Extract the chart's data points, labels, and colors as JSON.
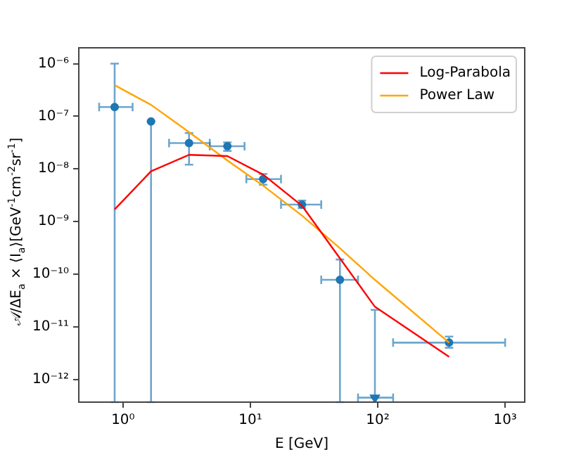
{
  "chart_data": {
    "type": "scatter",
    "xlabel": "E [GeV]",
    "ylabel": "𝒜/ΔE$_{a}$ × ⟨I$_{a}$⟩[GeV$^{-1}$cm$^{-2}$sr$^{-1}$]",
    "log": "xy",
    "grid": false,
    "legend": "top right",
    "xlim": [
      0.45,
      1425
    ],
    "ylim": [
      3.7e-13,
      2e-06
    ],
    "xticks": [
      {
        "value": 1,
        "label": "10⁰"
      },
      {
        "value": 10,
        "label": "10¹"
      },
      {
        "value": 100,
        "label": "10²"
      },
      {
        "value": 1000,
        "label": "10³"
      }
    ],
    "yticks": [
      {
        "value": 1e-12,
        "label": "10⁻¹²"
      },
      {
        "value": 1e-11,
        "label": "10⁻¹¹"
      },
      {
        "value": 1e-10,
        "label": "10⁻¹⁰"
      },
      {
        "value": 1e-09,
        "label": "10⁻⁹"
      },
      {
        "value": 1e-08,
        "label": "10⁻⁸"
      },
      {
        "value": 1e-07,
        "label": "10⁻⁷"
      },
      {
        "value": 1e-06,
        "label": "10⁻⁶"
      }
    ],
    "series": [
      {
        "type": "line",
        "name": "Log-Parabola",
        "color": "#ff0000",
        "marker": "none",
        "x": [
          0.86,
          1.66,
          3.3,
          6.6,
          12.6,
          25.4,
          50.5,
          95,
          363
        ],
        "values": [
          1.7e-09,
          9e-09,
          1.85e-08,
          1.75e-08,
          7.8e-09,
          2e-09,
          2e-10,
          2.4e-11,
          2.7e-12
        ]
      },
      {
        "type": "line",
        "name": "Power Law",
        "color": "#ffa500",
        "marker": "none",
        "x": [
          0.86,
          1.66,
          3.3,
          6.6,
          12.6,
          25.4,
          50.5,
          95,
          363
        ],
        "values": [
          3.9e-07,
          1.65e-07,
          5e-08,
          1.45e-08,
          4.8e-09,
          1.3e-09,
          3.1e-10,
          7.8e-11,
          5e-12
        ]
      },
      {
        "type": "scatter",
        "color": "#1f77b4",
        "marker": "circle",
        "x": [
          0.86,
          3.3,
          6.6,
          12.6,
          25.4,
          50.5,
          363
        ],
        "values": [
          1.5e-07,
          3.1e-08,
          2.7e-08,
          6.4e-09,
          2.1e-09,
          7.8e-11,
          5e-12
        ],
        "errors": [
          [
            3.7e-13,
            1e-06
          ],
          [
            1.2e-08,
            4.8e-08
          ],
          [
            2.2e-08,
            3.2e-08
          ],
          [
            5e-09,
            8e-09
          ],
          [
            1.8e-09,
            2.5e-09
          ],
          [
            3.7e-13,
            1.9e-10
          ],
          [
            4e-12,
            6.5e-12
          ]
        ],
        "xerrors": [
          [
            0.65,
            1.19
          ],
          [
            2.3,
            4.8
          ],
          [
            4.8,
            9
          ],
          [
            9.3,
            17.4
          ],
          [
            17.4,
            36
          ],
          [
            36,
            70
          ],
          [
            132,
            1000
          ]
        ]
      },
      {
        "type": "scatter",
        "color": "#1f77b4",
        "marker": "circle",
        "x": [
          1.66
        ],
        "values": [
          8e-08
        ],
        "errors": [
          [
            3.7e-13,
            8e-08
          ]
        ]
      },
      {
        "type": "scatter",
        "color": "#1f77b4",
        "marker": "triangle",
        "x": [
          95
        ],
        "values": [
          4.5e-13
        ],
        "errors": [
          [
            4.5e-13,
            2.1e-11
          ]
        ],
        "xerrors": [
          [
            70,
            132
          ]
        ]
      }
    ]
  }
}
